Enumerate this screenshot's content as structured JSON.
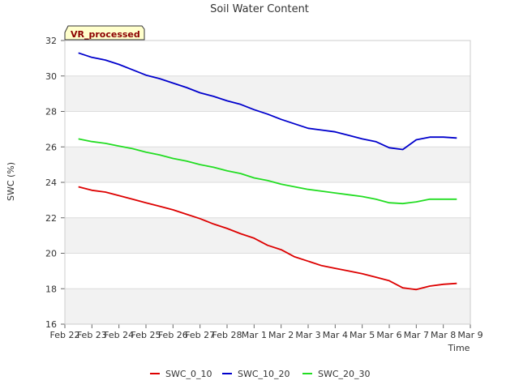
{
  "chart_data": {
    "type": "line",
    "title": "Soil Water Content",
    "xlabel": "Time",
    "ylabel": "SWC (%)",
    "badge": "VR_processed",
    "ylim": [
      16,
      32
    ],
    "yticks": [
      16,
      18,
      20,
      22,
      24,
      26,
      28,
      30,
      32
    ],
    "xlim": [
      "Feb 22",
      "Mar 9"
    ],
    "xticks": [
      "Feb 22",
      "Feb 23",
      "Feb 24",
      "Feb 25",
      "Feb 26",
      "Feb 27",
      "Feb 28",
      "Mar 1",
      "Mar 2",
      "Mar 3",
      "Mar 4",
      "Mar 5",
      "Mar 6",
      "Mar 7",
      "Mar 8",
      "Mar 9"
    ],
    "grid": true,
    "legend_position": "bottom",
    "x": [
      "Feb 22 12:00",
      "Feb 23 00:00",
      "Feb 23 12:00",
      "Feb 24 00:00",
      "Feb 24 12:00",
      "Feb 25 00:00",
      "Feb 25 12:00",
      "Feb 26 00:00",
      "Feb 26 12:00",
      "Feb 27 00:00",
      "Feb 27 12:00",
      "Feb 28 00:00",
      "Feb 28 12:00",
      "Mar 1 00:00",
      "Mar 1 12:00",
      "Mar 2 00:00",
      "Mar 2 12:00",
      "Mar 3 00:00",
      "Mar 3 12:00",
      "Mar 4 00:00",
      "Mar 4 12:00",
      "Mar 5 00:00",
      "Mar 5 12:00",
      "Mar 6 00:00",
      "Mar 6 12:00",
      "Mar 7 00:00",
      "Mar 7 12:00",
      "Mar 8 00:00",
      "Mar 8 12:00"
    ],
    "series": [
      {
        "name": "SWC_0_10",
        "color": "#dd0000",
        "values": [
          23.75,
          23.55,
          23.45,
          23.25,
          23.05,
          22.85,
          22.65,
          22.45,
          22.2,
          21.95,
          21.65,
          21.4,
          21.1,
          20.85,
          20.45,
          20.2,
          19.8,
          19.55,
          19.3,
          19.15,
          19.0,
          18.85,
          18.65,
          18.45,
          18.05,
          17.95,
          18.15,
          18.25,
          18.3
        ]
      },
      {
        "name": "SWC_10_20",
        "color": "#0000cc",
        "values": [
          31.3,
          31.05,
          30.9,
          30.65,
          30.35,
          30.05,
          29.85,
          29.6,
          29.35,
          29.05,
          28.85,
          28.6,
          28.4,
          28.1,
          27.85,
          27.55,
          27.3,
          27.05,
          26.95,
          26.85,
          26.65,
          26.45,
          26.3,
          25.95,
          25.85,
          26.4,
          26.55,
          26.55,
          26.5
        ]
      },
      {
        "name": "SWC_20_30",
        "color": "#22dd22",
        "values": [
          26.45,
          26.3,
          26.2,
          26.05,
          25.9,
          25.7,
          25.55,
          25.35,
          25.2,
          25.0,
          24.85,
          24.65,
          24.5,
          24.25,
          24.1,
          23.9,
          23.75,
          23.6,
          23.5,
          23.4,
          23.3,
          23.2,
          23.05,
          22.85,
          22.8,
          22.9,
          23.05,
          23.05,
          23.05
        ]
      }
    ]
  }
}
